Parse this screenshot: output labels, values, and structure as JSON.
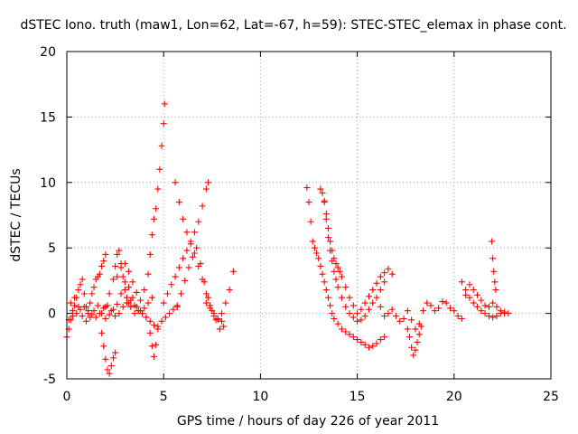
{
  "chart_data": {
    "type": "scatter",
    "title": "dSTEC Iono. truth (maw1, Lon=62, Lat=-67, h=59): STEC-STEC_elemax in phase cont.",
    "xlabel": "GPS time / hours of day 226 of year 2011",
    "ylabel": "dSTEC  / TECUs",
    "xlim": [
      0,
      25
    ],
    "ylim": [
      -5,
      20
    ],
    "xticks": [
      0,
      5,
      10,
      15,
      20,
      25
    ],
    "yticks": [
      -5,
      0,
      5,
      10,
      15,
      20
    ],
    "grid": true,
    "marker": "+",
    "color": "#ff0000",
    "series": [
      {
        "x": [
          0.0,
          0.1,
          0.2,
          0.3,
          0.4,
          0.5,
          0.6,
          0.7,
          0.8,
          0.9,
          1.0,
          1.1,
          1.2,
          1.3,
          1.4,
          1.5,
          1.6,
          1.7,
          1.8,
          1.9,
          2.0
        ],
        "y": [
          -1.8,
          -1.2,
          -0.5,
          0.2,
          0.6,
          1.2,
          1.8,
          2.2,
          2.6,
          1.5,
          0.5,
          0.0,
          0.8,
          1.5,
          2.0,
          2.6,
          2.8,
          3.0,
          3.6,
          4.0,
          4.5
        ]
      },
      {
        "x": [
          0.1,
          0.3,
          0.5,
          0.7,
          0.9,
          1.1,
          1.3,
          1.5,
          1.7,
          1.9,
          2.1,
          2.3,
          2.5,
          2.7,
          2.9,
          3.1,
          3.3,
          3.5,
          3.7,
          3.9,
          4.1
        ],
        "y": [
          -0.5,
          -0.2,
          0.0,
          0.3,
          0.5,
          0.2,
          -0.1,
          -0.3,
          0.0,
          0.4,
          0.6,
          0.2,
          -0.2,
          0.0,
          0.5,
          0.8,
          1.0,
          0.6,
          0.2,
          0.0,
          -0.3
        ]
      },
      {
        "x": [
          0.2,
          0.4,
          0.6,
          0.8,
          1.0,
          1.2,
          1.4,
          1.6,
          1.8,
          2.0,
          2.2,
          2.4,
          2.6,
          2.8,
          3.0,
          3.2,
          3.4,
          3.6,
          3.8,
          4.0,
          4.2,
          4.4
        ],
        "y": [
          0.8,
          1.2,
          0.5,
          -0.2,
          -0.6,
          -0.3,
          0.2,
          0.6,
          0.0,
          -0.4,
          -0.1,
          0.3,
          0.7,
          1.5,
          2.4,
          2.0,
          1.2,
          0.5,
          0.2,
          0.4,
          0.8,
          1.2
        ]
      },
      {
        "x": [
          1.8,
          1.9,
          2.0,
          2.1,
          2.2,
          2.3,
          2.4,
          2.5
        ],
        "y": [
          -1.5,
          -2.5,
          -3.5,
          -4.3,
          -4.6,
          -4.0,
          -3.4,
          -3.0
        ]
      },
      {
        "x": [
          2.0,
          2.2,
          2.4,
          2.5,
          2.6,
          2.7,
          2.8,
          2.9,
          3.0,
          3.1,
          3.2,
          3.3
        ],
        "y": [
          0.5,
          1.5,
          2.6,
          3.6,
          4.5,
          4.8,
          3.8,
          2.8,
          1.8,
          1.2,
          0.8,
          0.5
        ]
      },
      {
        "x": [
          2.6,
          2.8,
          3.0,
          3.2,
          3.4,
          3.6,
          3.8,
          4.0,
          4.2,
          4.3,
          4.4,
          4.5,
          4.6,
          4.7,
          4.8,
          4.9,
          5.0,
          5.05
        ],
        "y": [
          2.8,
          3.5,
          3.8,
          3.2,
          2.4,
          1.6,
          1.0,
          1.8,
          3.0,
          4.5,
          6.0,
          7.2,
          8.0,
          9.5,
          11.0,
          12.8,
          14.5,
          16.0
        ]
      },
      {
        "x": [
          3.5,
          3.7,
          3.9,
          4.1,
          4.3,
          4.5,
          4.7,
          4.9,
          5.1,
          5.3,
          5.5,
          5.7
        ],
        "y": [
          0.0,
          0.2,
          0.0,
          -0.3,
          -0.6,
          -0.9,
          -1.0,
          -0.6,
          -0.3,
          0.0,
          0.3,
          0.6
        ]
      },
      {
        "x": [
          4.3,
          4.4,
          4.5,
          4.6,
          4.7
        ],
        "y": [
          -1.5,
          -2.5,
          -3.3,
          -2.4,
          -1.2
        ]
      },
      {
        "x": [
          5.0,
          5.2,
          5.4,
          5.6,
          5.8,
          6.0,
          6.2,
          6.4,
          6.6,
          6.8,
          7.0,
          7.2,
          7.3
        ],
        "y": [
          0.8,
          1.5,
          2.2,
          2.8,
          3.5,
          4.2,
          4.8,
          5.5,
          6.2,
          7.0,
          8.2,
          9.5,
          10.0
        ]
      },
      {
        "x": [
          5.6,
          5.8,
          6.0,
          6.2,
          6.4,
          6.6,
          6.8,
          7.0,
          7.2,
          7.4,
          7.6,
          7.8,
          8.0
        ],
        "y": [
          10.0,
          8.5,
          7.2,
          6.2,
          5.3,
          4.6,
          3.6,
          2.6,
          1.5,
          0.6,
          0.0,
          -0.5,
          -0.6
        ]
      },
      {
        "x": [
          5.7,
          5.9,
          6.1,
          6.3,
          6.5,
          6.7,
          6.9,
          7.1,
          7.3,
          7.5,
          7.7,
          7.9,
          8.1
        ],
        "y": [
          0.5,
          1.5,
          2.5,
          3.5,
          4.3,
          5.0,
          3.8,
          2.4,
          1.2,
          0.2,
          -0.5,
          -1.2,
          -1.0
        ]
      },
      {
        "x": [
          7.2,
          7.4,
          7.6,
          7.8,
          8.0,
          8.2,
          8.4,
          8.6
        ],
        "y": [
          0.8,
          0.4,
          -0.2,
          -0.4,
          0.0,
          0.8,
          1.8,
          3.2
        ]
      },
      {
        "x": [
          12.4,
          12.5,
          12.6,
          12.7,
          12.8,
          12.9,
          13.0,
          13.1,
          13.2,
          13.3,
          13.4,
          13.5,
          13.6,
          13.7,
          13.8,
          14.0,
          14.2,
          14.4,
          14.6,
          14.8,
          15.0,
          15.2,
          15.4,
          15.6,
          15.8,
          16.0,
          16.2,
          16.4
        ],
        "y": [
          9.6,
          8.5,
          7.0,
          5.5,
          5.0,
          4.6,
          4.2,
          3.6,
          3.0,
          2.4,
          1.8,
          1.2,
          0.6,
          0.0,
          -0.4,
          -0.8,
          -1.2,
          -1.4,
          -1.6,
          -1.8,
          -2.0,
          -2.2,
          -2.4,
          -2.6,
          -2.5,
          -2.3,
          -2.0,
          -1.8
        ]
      },
      {
        "x": [
          13.1,
          13.2,
          13.3,
          13.4,
          13.5,
          13.6,
          13.7,
          13.8,
          13.9,
          14.0,
          14.2,
          14.4,
          14.6,
          14.8,
          15.0,
          15.2,
          15.4,
          15.6,
          15.8,
          16.0,
          16.2,
          16.4
        ],
        "y": [
          9.5,
          9.2,
          8.5,
          7.2,
          5.8,
          4.8,
          4.0,
          3.2,
          2.6,
          2.0,
          1.2,
          0.5,
          0.0,
          -0.3,
          -0.6,
          -0.5,
          -0.2,
          0.3,
          0.8,
          1.2,
          1.8,
          2.4
        ]
      },
      {
        "x": [
          13.3,
          13.4,
          13.5,
          13.6,
          13.7,
          13.8,
          13.9,
          14.0,
          14.1,
          14.2,
          14.4,
          14.6,
          14.8,
          15.0,
          15.2,
          15.4,
          15.6,
          15.8,
          16.0,
          16.2,
          16.4,
          16.6,
          16.8
        ],
        "y": [
          8.6,
          7.6,
          6.5,
          5.5,
          4.8,
          4.2,
          3.8,
          3.5,
          3.2,
          2.8,
          2.0,
          1.2,
          0.6,
          0.0,
          0.3,
          0.8,
          1.3,
          1.8,
          2.3,
          2.8,
          3.1,
          3.4,
          3.0
        ]
      },
      {
        "x": [
          16.2,
          16.4,
          16.6,
          16.8,
          17.0,
          17.2,
          17.4,
          17.6,
          17.8,
          18.0,
          18.2,
          18.4,
          18.6,
          18.8,
          19.0,
          19.2,
          19.4,
          19.6,
          19.8,
          20.0,
          20.2,
          20.4
        ],
        "y": [
          0.5,
          -0.2,
          0.0,
          0.3,
          -0.2,
          -0.6,
          -0.4,
          0.2,
          -0.5,
          -1.2,
          -0.8,
          0.2,
          0.8,
          0.6,
          0.2,
          0.4,
          0.9,
          0.8,
          0.4,
          0.2,
          -0.2,
          -0.4
        ]
      },
      {
        "x": [
          17.6,
          17.7,
          17.8,
          17.9,
          18.0,
          18.1,
          18.2,
          18.3
        ],
        "y": [
          -1.2,
          -1.8,
          -2.6,
          -3.2,
          -2.8,
          -2.2,
          -1.6,
          -1.0
        ]
      },
      {
        "x": [
          20.4,
          20.6,
          20.8,
          21.0,
          21.2,
          21.4,
          21.6,
          21.8,
          22.0,
          22.2,
          22.4,
          22.6,
          22.8
        ],
        "y": [
          2.4,
          1.8,
          1.2,
          0.8,
          0.5,
          0.2,
          0.0,
          -0.2,
          -0.3,
          -0.2,
          0.0,
          0.1,
          0.0
        ]
      },
      {
        "x": [
          20.6,
          20.8,
          21.0,
          21.2,
          21.4,
          21.6,
          21.8,
          22.0,
          22.2,
          22.4,
          22.6
        ],
        "y": [
          1.4,
          2.2,
          1.8,
          1.4,
          1.0,
          0.6,
          0.5,
          0.8,
          0.5,
          0.2,
          0.0
        ]
      },
      {
        "x": [
          21.95,
          22.0,
          22.05,
          22.1,
          22.15
        ],
        "y": [
          5.5,
          4.2,
          3.2,
          2.4,
          1.8
        ]
      }
    ]
  }
}
